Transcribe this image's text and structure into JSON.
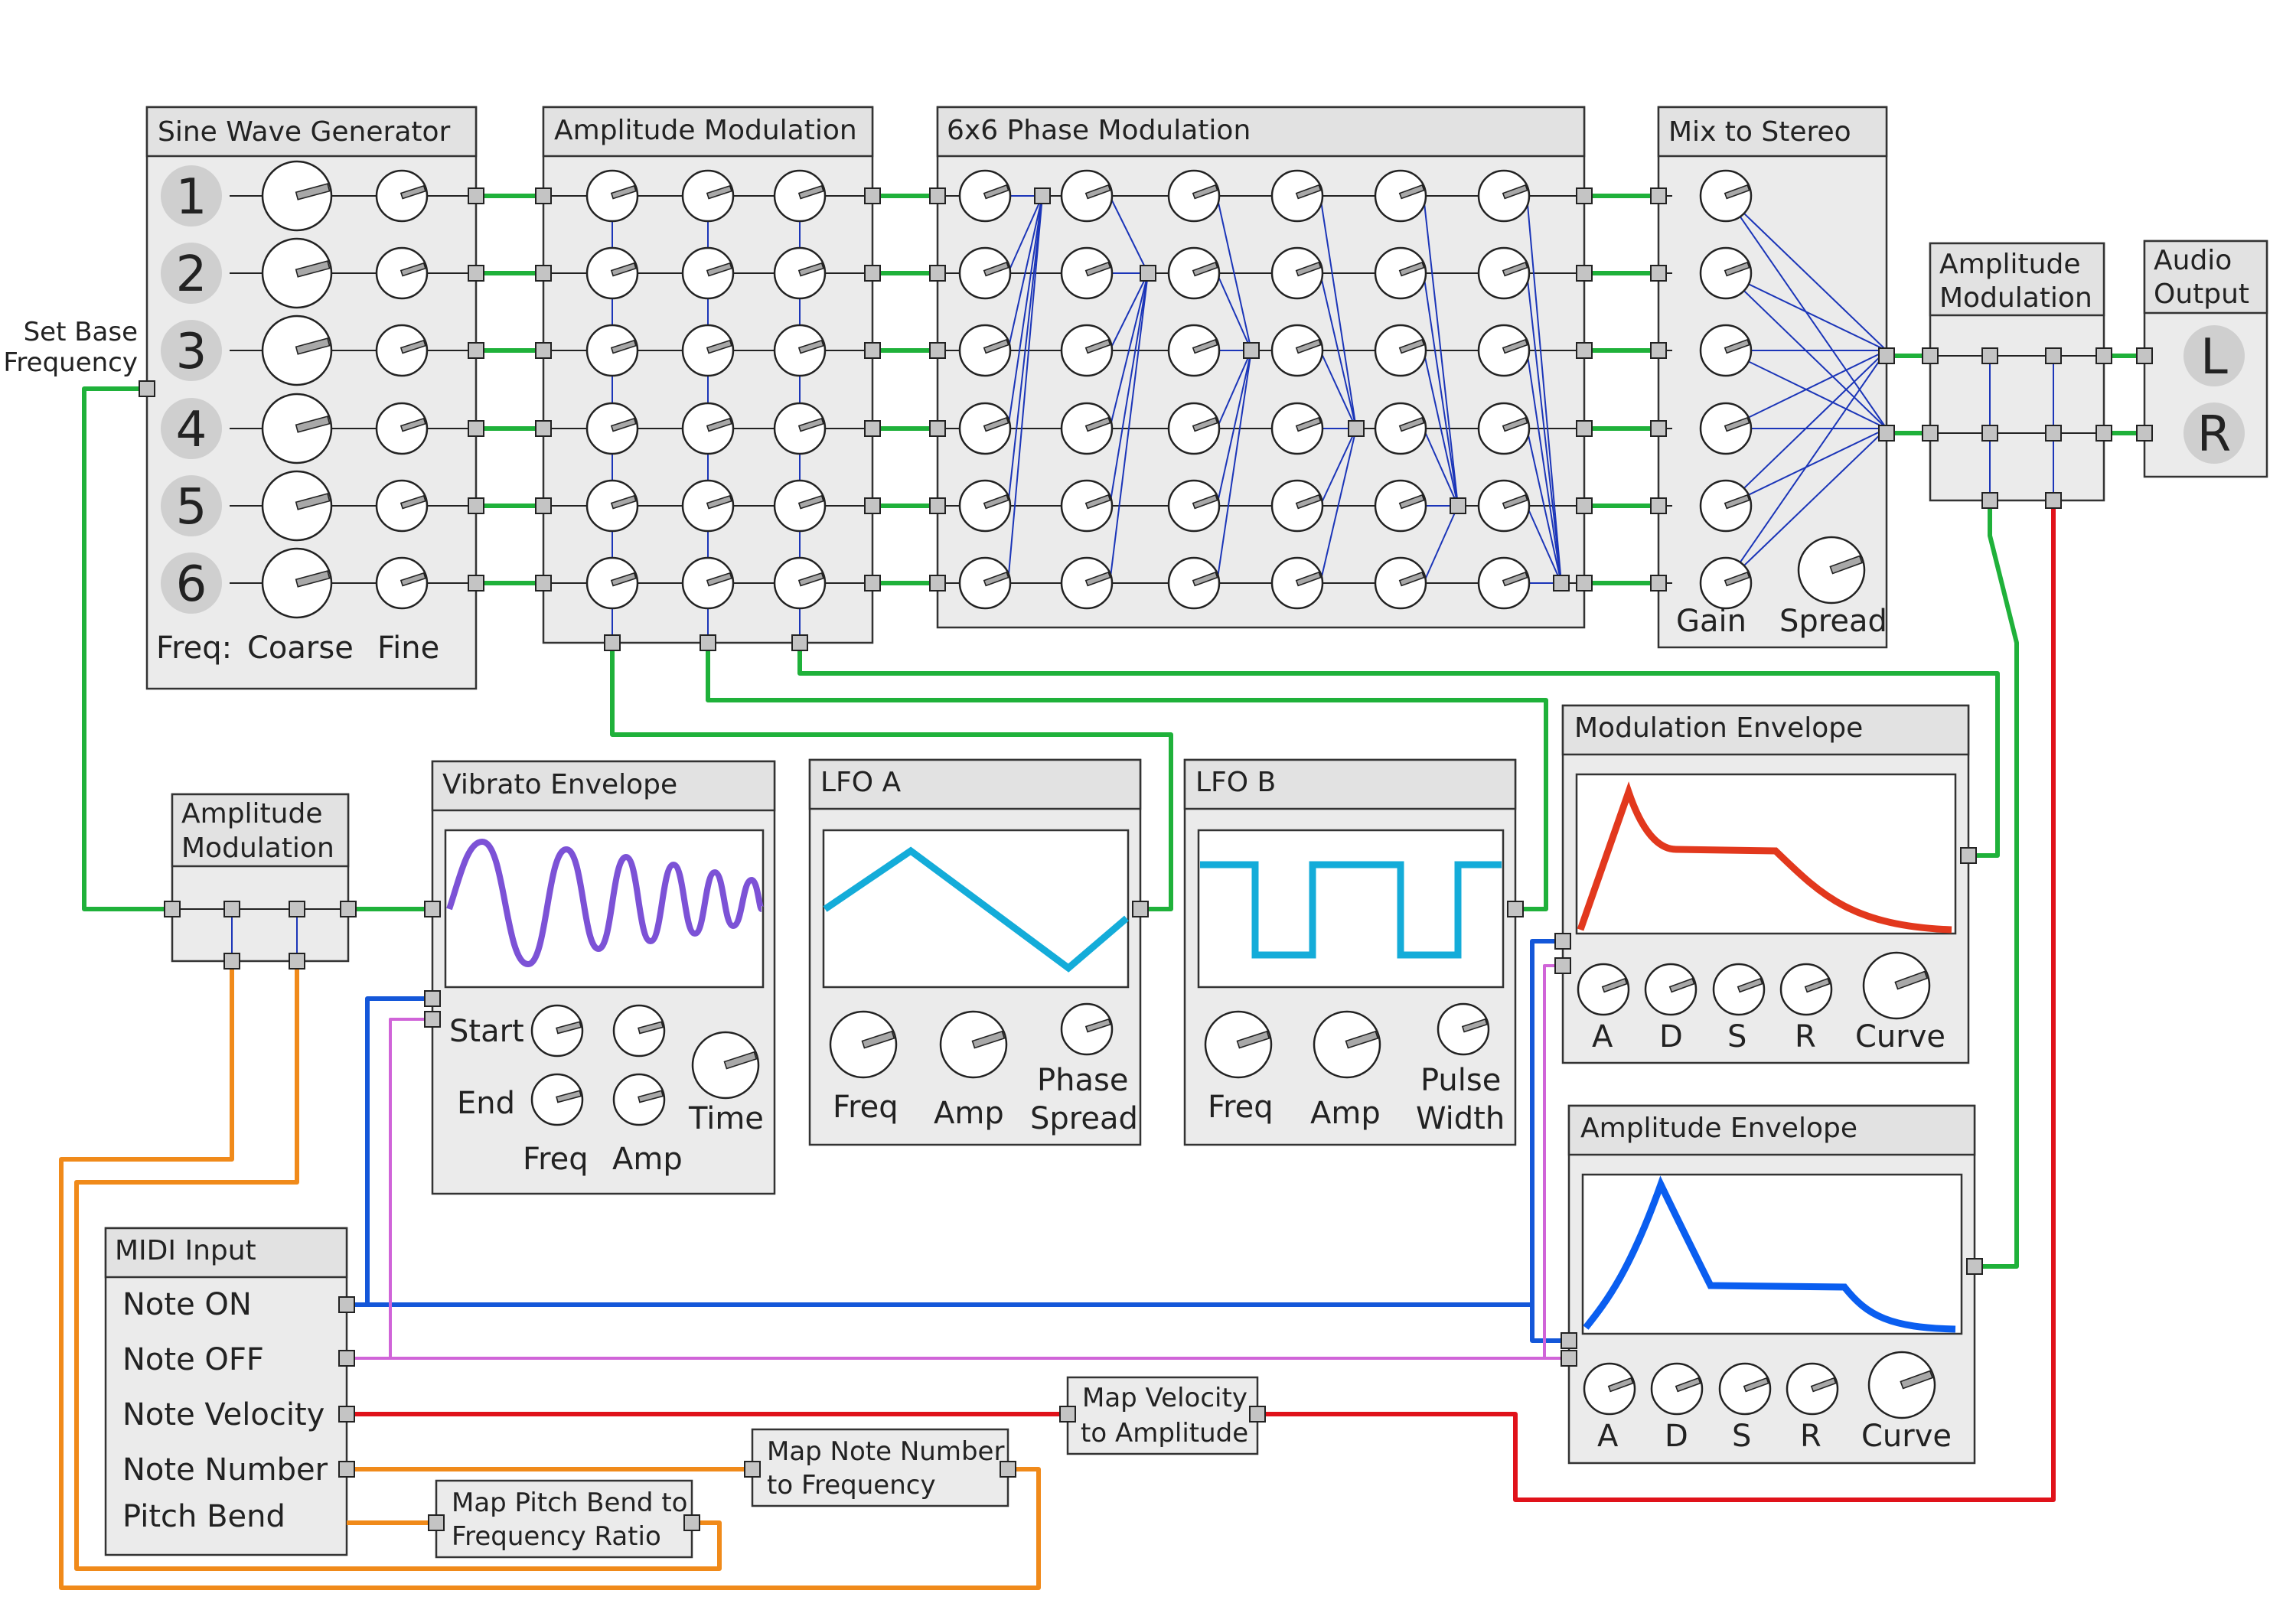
{
  "sine": {
    "title": "Sine Wave Generator",
    "numbers": [
      "1",
      "2",
      "3",
      "4",
      "5",
      "6"
    ],
    "freq_label": "Freq:",
    "coarse_label": "Coarse",
    "fine_label": "Fine"
  },
  "set_base": {
    "line1": "Set Base",
    "line2": "Frequency"
  },
  "am1": {
    "title": "Amplitude Modulation"
  },
  "pm": {
    "title": "6x6 Phase Modulation"
  },
  "mix": {
    "title": "Mix to Stereo",
    "gain_label": "Gain",
    "spread_label": "Spread"
  },
  "am_stereo": {
    "line1": "Amplitude",
    "line2": "Modulation"
  },
  "audio_out": {
    "line1": "Audio",
    "line2": "Output",
    "left": "L",
    "right": "R"
  },
  "am_small": {
    "line1": "Amplitude",
    "line2": "Modulation"
  },
  "vibrato": {
    "title": "Vibrato Envelope",
    "start_label": "Start",
    "end_label": "End",
    "freq_label": "Freq",
    "amp_label": "Amp",
    "time_label": "Time"
  },
  "lfo_a": {
    "title": "LFO A",
    "freq_label": "Freq",
    "amp_label": "Amp",
    "phase_line1": "Phase",
    "phase_line2": "Spread"
  },
  "lfo_b": {
    "title": "LFO B",
    "freq_label": "Freq",
    "amp_label": "Amp",
    "pw_line1": "Pulse",
    "pw_line2": "Width"
  },
  "mod_env": {
    "title": "Modulation Envelope",
    "a": "A",
    "d": "D",
    "s": "S",
    "r": "R",
    "curve": "Curve"
  },
  "amp_env": {
    "title": "Amplitude Envelope",
    "a": "A",
    "d": "D",
    "s": "S",
    "r": "R",
    "curve": "Curve"
  },
  "midi": {
    "title": "MIDI Input",
    "outputs": [
      "Note ON",
      "Note OFF",
      "Note Velocity",
      "Note Number",
      "Pitch Bend"
    ]
  },
  "map_velocity": {
    "line1": "Map Velocity",
    "line2": "to Amplitude"
  },
  "map_note": {
    "line1": "Map Note Number",
    "line2": "to Frequency"
  },
  "map_bend": {
    "line1": "Map Pitch Bend to",
    "line2": "Frequency Ratio"
  },
  "colors": {
    "audio_wire": "#1fb13a",
    "phase_wire": "#1b35b8",
    "note_on_wire": "#1457d9",
    "note_off_wire": "#d064d8",
    "pitch_wire": "#f08a1a",
    "velocity_wire": "#e0121a",
    "vibrato_wave": "#7c52d6",
    "lfo_wave": "#14acd9",
    "mod_env_curve": "#e2381d",
    "amp_env_curve": "#0a5ef0"
  }
}
